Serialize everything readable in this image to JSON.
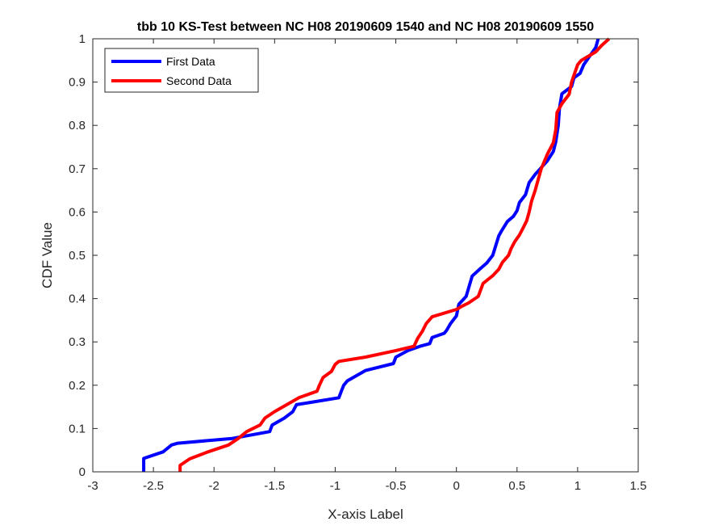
{
  "chart_data": {
    "type": "line",
    "title": "tbb 10 KS-Test between NC H08 20190609 1540 and NC H08 20190609 1550",
    "xlabel": "X-axis Label",
    "ylabel": "CDF Value",
    "xlim": [
      -3,
      1.5
    ],
    "ylim": [
      0,
      1
    ],
    "xticks": [
      -3,
      -2.5,
      -2,
      -1.5,
      -1,
      -0.5,
      0,
      0.5,
      1,
      1.5
    ],
    "xtick_labels": [
      "-3",
      "-2.5",
      "-2",
      "-1.5",
      "-1",
      "-0.5",
      "0",
      "0.5",
      "1",
      "1.5"
    ],
    "yticks": [
      0,
      0.1,
      0.2,
      0.3,
      0.4,
      0.5,
      0.6,
      0.7,
      0.8,
      0.9,
      1
    ],
    "ytick_labels": [
      "0",
      "0.1",
      "0.2",
      "0.3",
      "0.4",
      "0.5",
      "0.6",
      "0.7",
      "0.8",
      "0.9",
      "1"
    ],
    "grid": false,
    "legend_position": "top-left",
    "series": [
      {
        "name": "First Data",
        "color": "#0000ff",
        "x": [
          -2.58,
          -2.58,
          -2.42,
          -2.35,
          -2.3,
          -1.85,
          -1.54,
          -1.52,
          -1.42,
          -1.35,
          -1.32,
          -0.97,
          -0.95,
          -0.93,
          -0.9,
          -0.75,
          -0.52,
          -0.5,
          -0.4,
          -0.3,
          -0.22,
          -0.2,
          -0.1,
          -0.08,
          -0.05,
          0,
          0.02,
          0.08,
          0.13,
          0.2,
          0.25,
          0.3,
          0.35,
          0.37,
          0.42,
          0.47,
          0.5,
          0.52,
          0.57,
          0.6,
          0.65,
          0.75,
          0.8,
          0.82,
          0.84,
          0.85,
          0.87,
          0.95,
          0.97,
          1.02,
          1.05,
          1.1,
          1.15,
          1.17
        ],
        "y": [
          0,
          0.031,
          0.046,
          0.062,
          0.066,
          0.077,
          0.093,
          0.108,
          0.124,
          0.139,
          0.155,
          0.171,
          0.186,
          0.2,
          0.21,
          0.234,
          0.25,
          0.265,
          0.28,
          0.29,
          0.296,
          0.31,
          0.32,
          0.327,
          0.342,
          0.36,
          0.387,
          0.405,
          0.452,
          0.47,
          0.482,
          0.5,
          0.545,
          0.555,
          0.578,
          0.59,
          0.603,
          0.622,
          0.64,
          0.668,
          0.687,
          0.718,
          0.74,
          0.762,
          0.8,
          0.84,
          0.873,
          0.89,
          0.91,
          0.92,
          0.94,
          0.96,
          0.98,
          1
        ]
      },
      {
        "name": "Second Data",
        "color": "#ff0000",
        "x": [
          -2.28,
          -2.28,
          -2.2,
          -2.05,
          -1.88,
          -1.8,
          -1.73,
          -1.62,
          -1.58,
          -1.5,
          -1.4,
          -1.3,
          -1.15,
          -1.13,
          -1.1,
          -1.03,
          -1.0,
          -0.97,
          -0.75,
          -0.5,
          -0.35,
          -0.32,
          -0.28,
          -0.25,
          -0.2,
          0,
          0.05,
          0.1,
          0.18,
          0.2,
          0.22,
          0.3,
          0.35,
          0.38,
          0.43,
          0.45,
          0.48,
          0.52,
          0.55,
          0.58,
          0.6,
          0.62,
          0.65,
          0.7,
          0.75,
          0.8,
          0.82,
          0.83,
          0.87,
          0.93,
          0.95,
          1,
          1.03,
          1.15,
          1.2,
          1.26
        ],
        "y": [
          0,
          0.015,
          0.03,
          0.046,
          0.062,
          0.077,
          0.093,
          0.108,
          0.124,
          0.139,
          0.155,
          0.171,
          0.186,
          0.2,
          0.218,
          0.232,
          0.248,
          0.255,
          0.265,
          0.28,
          0.29,
          0.308,
          0.325,
          0.342,
          0.358,
          0.375,
          0.383,
          0.39,
          0.405,
          0.42,
          0.435,
          0.453,
          0.468,
          0.484,
          0.5,
          0.515,
          0.531,
          0.547,
          0.563,
          0.58,
          0.6,
          0.625,
          0.65,
          0.7,
          0.733,
          0.76,
          0.79,
          0.83,
          0.85,
          0.872,
          0.9,
          0.94,
          0.95,
          0.97,
          0.985,
          1
        ]
      }
    ]
  }
}
